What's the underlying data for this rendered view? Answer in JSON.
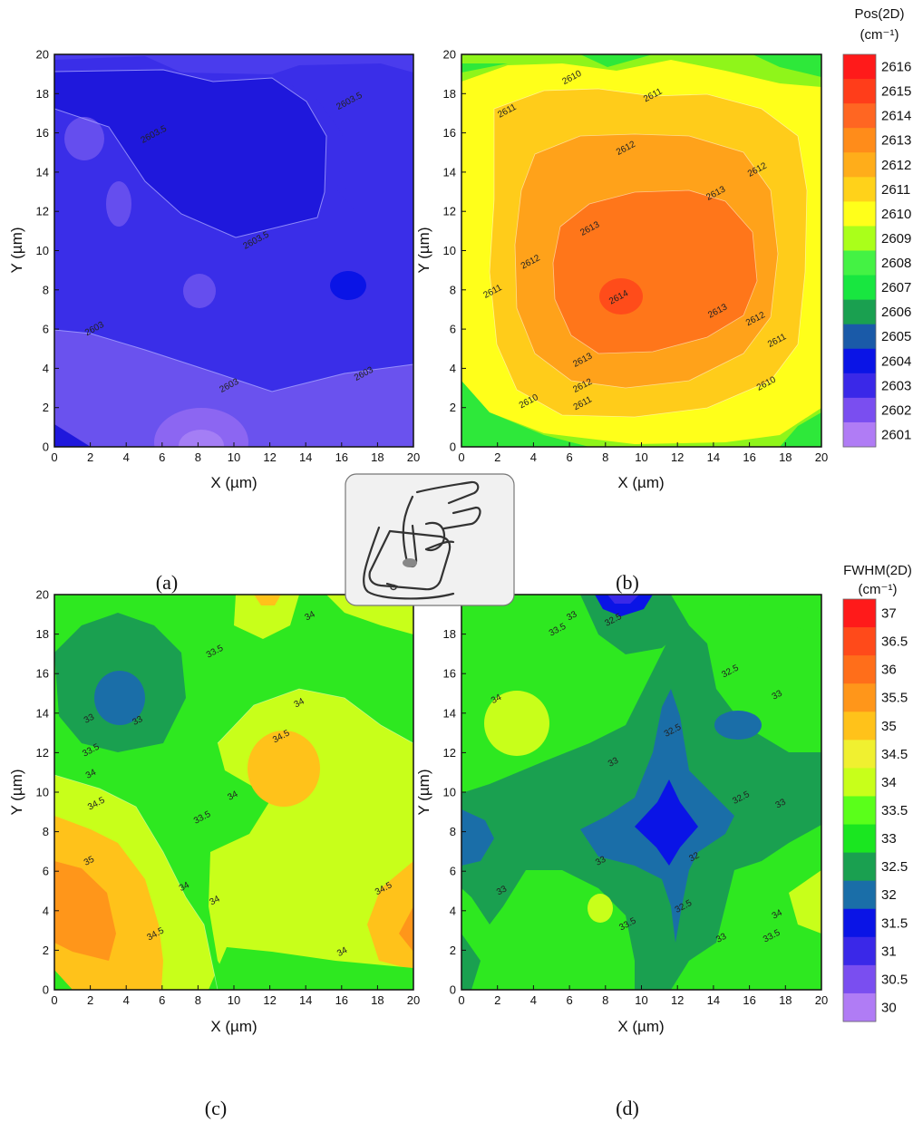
{
  "panel_labels": [
    "(a)",
    "(b)",
    "(c)",
    "(d)"
  ],
  "icons": {
    "touch_gesture": "touch-gesture-icon"
  },
  "colorbars": [
    {
      "title_line1": "Pos(2D)",
      "title_line2": "(cm⁻¹)",
      "ticks": [
        "2616",
        "2615",
        "2614",
        "2613",
        "2612",
        "2611",
        "2610",
        "2609",
        "2608",
        "2607",
        "2606",
        "2605",
        "2604",
        "2603",
        "2602",
        "2601"
      ],
      "colors": [
        "#ff1a1a",
        "#ff3d1a",
        "#ff6622",
        "#ff8c1a",
        "#ffad1a",
        "#ffd21a",
        "#ffff1a",
        "#aaff1a",
        "#44f244",
        "#18e640",
        "#1aa050",
        "#1a5aa8",
        "#0a14e6",
        "#3a28e8",
        "#7a4ef0",
        "#b07cf5"
      ]
    },
    {
      "title_line1": "FWHM(2D)",
      "title_line2": "(cm⁻¹)",
      "ticks": [
        "37",
        "36.5",
        "36",
        "35.5",
        "35",
        "34.5",
        "34",
        "33.5",
        "33",
        "32.5",
        "32",
        "31.5",
        "31",
        "30.5",
        "30"
      ],
      "colors": [
        "#ff1a1a",
        "#ff4a1a",
        "#ff6e1a",
        "#ff961a",
        "#ffc21a",
        "#f0f030",
        "#c8ff1a",
        "#5aff1a",
        "#1ae620",
        "#1aa050",
        "#1a6ea8",
        "#0a14e6",
        "#3a28e8",
        "#7a4ef0",
        "#b07cf5"
      ]
    }
  ],
  "chart_data": [
    {
      "type": "heatmap",
      "panel": "(a)",
      "xlabel": "X (µm)",
      "ylabel": "Y (µm)",
      "xlim": [
        0,
        20
      ],
      "ylim": [
        0,
        20
      ],
      "xticks": [
        "0",
        "2",
        "4",
        "6",
        "8",
        "10",
        "12",
        "14",
        "16",
        "18",
        "20"
      ],
      "yticks": [
        "0",
        "2",
        "4",
        "6",
        "8",
        "10",
        "12",
        "14",
        "16",
        "18",
        "20"
      ],
      "colorbar": "Pos(2D)",
      "contour_labels": [
        {
          "text": "2603.5",
          "x": 16.5,
          "y": 17.5
        },
        {
          "text": "2603.5",
          "x": 5.6,
          "y": 15.8
        },
        {
          "text": "2603.5",
          "x": 11.3,
          "y": 10.4
        },
        {
          "text": "2603",
          "x": 2.3,
          "y": 5.9
        },
        {
          "text": "2603",
          "x": 9.8,
          "y": 3.0
        },
        {
          "text": "2603",
          "x": 17.3,
          "y": 3.6
        }
      ]
    },
    {
      "type": "heatmap",
      "panel": "(b)",
      "xlabel": "X (µm)",
      "ylabel": "Y (µm)",
      "xlim": [
        0,
        20
      ],
      "ylim": [
        0,
        20
      ],
      "xticks": [
        "0",
        "2",
        "4",
        "6",
        "8",
        "10",
        "12",
        "14",
        "16",
        "18",
        "20"
      ],
      "yticks": [
        "0",
        "2",
        "4",
        "6",
        "8",
        "10",
        "12",
        "14",
        "16",
        "18",
        "20"
      ],
      "colorbar": "Pos(2D)",
      "contour_labels": [
        {
          "text": "2610",
          "x": 6.2,
          "y": 18.7
        },
        {
          "text": "2611",
          "x": 2.6,
          "y": 17.0
        },
        {
          "text": "2611",
          "x": 10.7,
          "y": 17.8
        },
        {
          "text": "2612",
          "x": 9.2,
          "y": 15.1
        },
        {
          "text": "2612",
          "x": 16.5,
          "y": 14.0
        },
        {
          "text": "2613",
          "x": 14.2,
          "y": 12.8
        },
        {
          "text": "2613",
          "x": 7.2,
          "y": 11.0
        },
        {
          "text": "2612",
          "x": 3.9,
          "y": 9.3
        },
        {
          "text": "2611",
          "x": 1.8,
          "y": 7.8
        },
        {
          "text": "2614",
          "x": 8.8,
          "y": 7.5
        },
        {
          "text": "2613",
          "x": 14.3,
          "y": 6.8
        },
        {
          "text": "2612",
          "x": 16.4,
          "y": 6.4
        },
        {
          "text": "2611",
          "x": 17.6,
          "y": 5.3
        },
        {
          "text": "2613",
          "x": 6.8,
          "y": 4.3
        },
        {
          "text": "2612",
          "x": 6.8,
          "y": 3.0
        },
        {
          "text": "2610",
          "x": 17.0,
          "y": 3.1
        },
        {
          "text": "2610",
          "x": 3.8,
          "y": 2.2
        },
        {
          "text": "2611",
          "x": 6.8,
          "y": 2.1
        }
      ]
    },
    {
      "type": "heatmap",
      "panel": "(c)",
      "xlabel": "X (µm)",
      "ylabel": "Y (µm)",
      "xlim": [
        0,
        20
      ],
      "ylim": [
        0,
        20
      ],
      "xticks": [
        "0",
        "2",
        "4",
        "6",
        "8",
        "10",
        "12",
        "14",
        "16",
        "18",
        "20"
      ],
      "yticks": [
        "0",
        "2",
        "4",
        "6",
        "8",
        "10",
        "12",
        "14",
        "16",
        "18",
        "20"
      ],
      "colorbar": "FWHM(2D)",
      "contour_labels": [
        {
          "text": "34",
          "x": 14.3,
          "y": 18.8
        },
        {
          "text": "33.5",
          "x": 9.0,
          "y": 17.0
        },
        {
          "text": "34",
          "x": 13.7,
          "y": 14.4
        },
        {
          "text": "33",
          "x": 2.0,
          "y": 13.6
        },
        {
          "text": "33",
          "x": 4.7,
          "y": 13.5
        },
        {
          "text": "34.5",
          "x": 12.7,
          "y": 12.7
        },
        {
          "text": "33.5",
          "x": 2.1,
          "y": 12.0
        },
        {
          "text": "34",
          "x": 2.1,
          "y": 10.8
        },
        {
          "text": "34",
          "x": 10.0,
          "y": 9.7
        },
        {
          "text": "34.5",
          "x": 2.4,
          "y": 9.3
        },
        {
          "text": "33.5",
          "x": 8.3,
          "y": 8.6
        },
        {
          "text": "35",
          "x": 2.0,
          "y": 6.4
        },
        {
          "text": "34",
          "x": 7.3,
          "y": 5.1
        },
        {
          "text": "34",
          "x": 9.0,
          "y": 4.4
        },
        {
          "text": "34.5",
          "x": 18.4,
          "y": 5.0
        },
        {
          "text": "34.5",
          "x": 5.7,
          "y": 2.7
        },
        {
          "text": "34",
          "x": 16.1,
          "y": 1.8
        }
      ]
    },
    {
      "type": "heatmap",
      "panel": "(d)",
      "xlabel": "X (µm)",
      "ylabel": "Y (µm)",
      "xlim": [
        0,
        20
      ],
      "ylim": [
        0,
        20
      ],
      "xticks": [
        "0",
        "2",
        "4",
        "6",
        "8",
        "10",
        "12",
        "14",
        "16",
        "18",
        "20"
      ],
      "yticks": [
        "0",
        "2",
        "4",
        "6",
        "8",
        "10",
        "12",
        "14",
        "16",
        "18",
        "20"
      ],
      "colorbar": "FWHM(2D)",
      "contour_labels": [
        {
          "text": "33",
          "x": 6.2,
          "y": 18.8
        },
        {
          "text": "32.5",
          "x": 8.5,
          "y": 18.6
        },
        {
          "text": "33.5",
          "x": 5.4,
          "y": 18.1
        },
        {
          "text": "32.5",
          "x": 15.0,
          "y": 16.0
        },
        {
          "text": "33",
          "x": 17.6,
          "y": 14.8
        },
        {
          "text": "34",
          "x": 2.0,
          "y": 14.6
        },
        {
          "text": "32.5",
          "x": 11.8,
          "y": 13.0
        },
        {
          "text": "33",
          "x": 8.5,
          "y": 11.4
        },
        {
          "text": "32.5",
          "x": 15.6,
          "y": 9.6
        },
        {
          "text": "33",
          "x": 17.8,
          "y": 9.3
        },
        {
          "text": "33",
          "x": 7.8,
          "y": 6.4
        },
        {
          "text": "32",
          "x": 13.0,
          "y": 6.6
        },
        {
          "text": "33",
          "x": 2.3,
          "y": 4.9
        },
        {
          "text": "32.5",
          "x": 12.4,
          "y": 4.1
        },
        {
          "text": "34",
          "x": 17.6,
          "y": 3.7
        },
        {
          "text": "33.5",
          "x": 9.3,
          "y": 3.2
        },
        {
          "text": "33.5",
          "x": 17.3,
          "y": 2.6
        },
        {
          "text": "33",
          "x": 14.5,
          "y": 2.5
        }
      ]
    }
  ]
}
